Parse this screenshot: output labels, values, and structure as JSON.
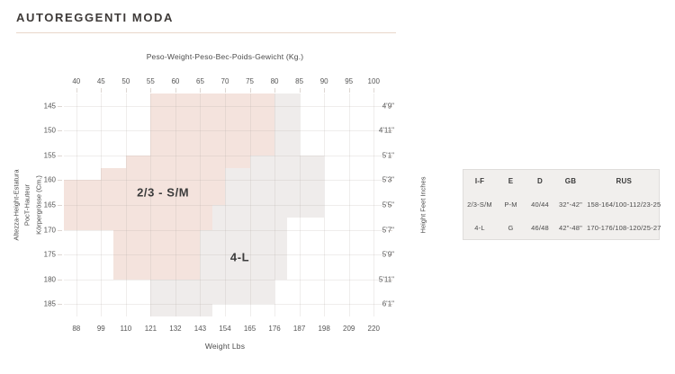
{
  "page": {
    "title": "AUTOREGGENTI MODA"
  },
  "chart_data": {
    "type": "area",
    "description": "Hosiery size chart: stepped fit regions plotted on weight (kg top / lbs bottom) vs height (cm left / feet-inches right)",
    "top_axis": {
      "title": "Peso-Weight-Peso-Bec-Poids-Gewicht (Kg.)",
      "ticks": [
        40,
        45,
        50,
        55,
        60,
        65,
        70,
        75,
        80,
        85,
        90,
        95,
        100
      ]
    },
    "bottom_axis": {
      "title": "Weight Lbs",
      "ticks": [
        88,
        99,
        110,
        121,
        132,
        143,
        154,
        165,
        176,
        187,
        198,
        209,
        220
      ]
    },
    "left_axis": {
      "title_lines": [
        "Altezza-Height-Estatura",
        "PocT-Hauteur",
        "Körpergrösse (Cm.)"
      ],
      "ticks": [
        145,
        150,
        155,
        160,
        165,
        170,
        175,
        180,
        185
      ]
    },
    "right_axis": {
      "title": "Height Feet Inches",
      "ticks": [
        "4'9\"",
        "4'11\"",
        "5'1\"",
        "5'3\"",
        "5'5\"",
        "5'7\"",
        "5'9\"",
        "5'11\"",
        "6'1\""
      ]
    },
    "x_range_kg": [
      37.5,
      102.5
    ],
    "y_range_cm": [
      142.5,
      187.5
    ],
    "grid": true,
    "regions": [
      {
        "label": "2/3 - S/M",
        "color": "#f4e3dd",
        "label_pos": {
          "kg": 57.5,
          "cm": 162.5
        },
        "bands": [
          {
            "cm": [
              142.5,
              155
            ],
            "kg": [
              55,
              80
            ]
          },
          {
            "cm": [
              155,
              157.5
            ],
            "kg": [
              50,
              75
            ]
          },
          {
            "cm": [
              157.5,
              160
            ],
            "kg": [
              45,
              70
            ]
          },
          {
            "cm": [
              160,
              165
            ],
            "kg": [
              37.5,
              70
            ]
          },
          {
            "cm": [
              165,
              170
            ],
            "kg": [
              37.5,
              67.5
            ]
          },
          {
            "cm": [
              170,
              180
            ],
            "kg": [
              47.5,
              65
            ]
          }
        ]
      },
      {
        "label": "4-L",
        "color": "#efeceb",
        "label_pos": {
          "kg": 73,
          "cm": 175.5
        },
        "bands": [
          {
            "cm": [
              142.5,
              155
            ],
            "kg": [
              80,
              85
            ]
          },
          {
            "cm": [
              155,
              157.5
            ],
            "kg": [
              75,
              90
            ]
          },
          {
            "cm": [
              157.5,
              165
            ],
            "kg": [
              70,
              90
            ]
          },
          {
            "cm": [
              165,
              167.5
            ],
            "kg": [
              67.5,
              90
            ]
          },
          {
            "cm": [
              167.5,
              170
            ],
            "kg": [
              67.5,
              82.5
            ]
          },
          {
            "cm": [
              170,
              180
            ],
            "kg": [
              65,
              82.5
            ]
          },
          {
            "cm": [
              180,
              185
            ],
            "kg": [
              55,
              80
            ]
          },
          {
            "cm": [
              185,
              187.5
            ],
            "kg": [
              55,
              67.5
            ]
          }
        ]
      }
    ]
  },
  "size_table": {
    "headers": [
      "I-F",
      "E",
      "D",
      "GB",
      "RUS"
    ],
    "rows": [
      [
        "2/3-S/M",
        "P-M",
        "40/44",
        "32\"-42\"",
        "158-164/100-112/23-25"
      ],
      [
        "4-L",
        "G",
        "46/48",
        "42\"-48\"",
        "170-176/108-120/25-27"
      ]
    ]
  },
  "colors": {
    "region_sm": "#f4e3dd",
    "region_l": "#efeceb",
    "divider": "#e8d7ca",
    "gridline": "#e5e2df",
    "table_bg": "#f1efed",
    "title_text": "#3e3a38"
  }
}
